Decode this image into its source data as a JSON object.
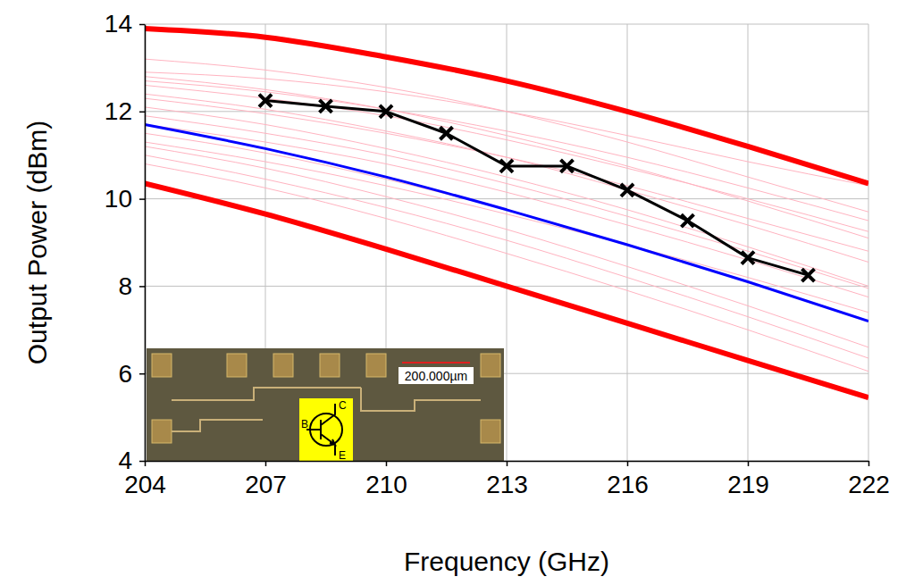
{
  "chart_data": {
    "type": "line",
    "x_label": "Frequency (GHz)",
    "y_label": "Output Power (dBm)",
    "xlim": [
      204,
      222
    ],
    "xticks": [
      204,
      207,
      210,
      213,
      216,
      219,
      222
    ],
    "ylim": [
      4,
      14
    ],
    "yticks": [
      4,
      6,
      8,
      10,
      12,
      14
    ],
    "grid": true,
    "annotations": [
      "200.000µm",
      "B",
      "C",
      "E"
    ],
    "series": [
      {
        "color": "#ffb3c0",
        "line_style": "solid",
        "marker": "none",
        "x": [
          204,
          207,
          210,
          213,
          216,
          219,
          222
        ],
        "values": [
          13.2,
          12.95,
          12.55,
          12.0,
          11.3,
          10.5,
          9.7
        ]
      },
      {
        "color": "#ffb3c0",
        "line_style": "solid",
        "marker": "none",
        "x": [
          204,
          207,
          210,
          213,
          216,
          219,
          222
        ],
        "values": [
          12.9,
          12.75,
          12.45,
          12.0,
          11.45,
          10.85,
          10.3
        ]
      },
      {
        "color": "#ffb3c0",
        "line_style": "solid",
        "marker": "none",
        "x": [
          204,
          207,
          210,
          213,
          216,
          219,
          222
        ],
        "values": [
          12.8,
          12.5,
          12.05,
          11.45,
          10.75,
          9.95,
          9.1
        ]
      },
      {
        "color": "#ffb3c0",
        "line_style": "solid",
        "marker": "none",
        "x": [
          204,
          207,
          210,
          213,
          216,
          219,
          222
        ],
        "values": [
          12.7,
          12.45,
          12.05,
          11.55,
          10.95,
          10.25,
          9.5
        ]
      },
      {
        "color": "#ffb3c0",
        "line_style": "solid",
        "marker": "none",
        "x": [
          204,
          207,
          210,
          213,
          216,
          219,
          222
        ],
        "values": [
          12.6,
          12.3,
          11.9,
          11.35,
          10.7,
          10.0,
          9.25
        ]
      },
      {
        "color": "#ffb3c0",
        "line_style": "solid",
        "marker": "none",
        "x": [
          204,
          207,
          210,
          213,
          216,
          219,
          222
        ],
        "values": [
          12.4,
          12.05,
          11.55,
          10.95,
          10.2,
          9.4,
          8.55
        ]
      },
      {
        "color": "#ffb3c0",
        "line_style": "solid",
        "marker": "none",
        "x": [
          204,
          207,
          210,
          213,
          216,
          219,
          222
        ],
        "values": [
          12.3,
          11.95,
          11.5,
          10.95,
          10.3,
          9.55,
          8.8
        ]
      },
      {
        "color": "#ffb3c0",
        "line_style": "solid",
        "marker": "none",
        "x": [
          204,
          207,
          210,
          213,
          216,
          219,
          222
        ],
        "values": [
          12.1,
          11.7,
          11.15,
          10.5,
          9.75,
          8.9,
          8.0
        ]
      },
      {
        "color": "#ffb3c0",
        "line_style": "solid",
        "marker": "none",
        "x": [
          204,
          207,
          210,
          213,
          216,
          219,
          222
        ],
        "values": [
          11.9,
          11.5,
          11.0,
          10.35,
          9.6,
          8.8,
          7.95
        ]
      },
      {
        "color": "#ffb3c0",
        "line_style": "solid",
        "marker": "none",
        "x": [
          204,
          207,
          210,
          213,
          216,
          219,
          222
        ],
        "values": [
          11.7,
          11.3,
          10.8,
          10.15,
          9.4,
          8.6,
          7.75
        ]
      },
      {
        "color": "#ffb3c0",
        "line_style": "solid",
        "marker": "none",
        "x": [
          204,
          207,
          210,
          213,
          216,
          219,
          222
        ],
        "values": [
          11.5,
          11.05,
          10.45,
          9.75,
          8.95,
          8.1,
          7.2
        ]
      },
      {
        "color": "#ffb3c0",
        "line_style": "solid",
        "marker": "none",
        "x": [
          204,
          207,
          210,
          213,
          216,
          219,
          222
        ],
        "values": [
          11.3,
          10.85,
          10.3,
          9.65,
          8.95,
          8.2,
          7.4
        ]
      },
      {
        "color": "#ffb3c0",
        "line_style": "solid",
        "marker": "none",
        "x": [
          204,
          207,
          210,
          213,
          216,
          219,
          222
        ],
        "values": [
          11.2,
          10.7,
          10.05,
          9.3,
          8.45,
          7.55,
          6.6
        ]
      },
      {
        "color": "#ffb3c0",
        "line_style": "solid",
        "marker": "none",
        "x": [
          204,
          207,
          210,
          213,
          216,
          219,
          222
        ],
        "values": [
          11.0,
          10.45,
          9.8,
          9.05,
          8.2,
          7.3,
          6.35
        ]
      },
      {
        "color": "#ffb3c0",
        "line_style": "solid",
        "marker": "none",
        "x": [
          204,
          207,
          210,
          213,
          216,
          219,
          222
        ],
        "values": [
          10.8,
          10.25,
          9.55,
          8.75,
          7.9,
          7.0,
          6.05
        ]
      },
      {
        "color": "#0000ff",
        "line_style": "solid",
        "marker": "none",
        "x": [
          204,
          207,
          210,
          213,
          216,
          219,
          222
        ],
        "values": [
          11.7,
          11.15,
          10.5,
          9.75,
          8.95,
          8.1,
          7.2
        ]
      },
      {
        "color": "#ff0000",
        "line_style": "thick",
        "marker": "none",
        "x": [
          204,
          207,
          210,
          213,
          216,
          219,
          222
        ],
        "values": [
          13.9,
          13.7,
          13.25,
          12.7,
          12.0,
          11.2,
          10.35
        ]
      },
      {
        "color": "#ff0000",
        "line_style": "thick",
        "marker": "none",
        "x": [
          204,
          207,
          210,
          213,
          216,
          219,
          222
        ],
        "values": [
          10.35,
          9.65,
          8.85,
          8.0,
          7.15,
          6.3,
          5.45
        ]
      },
      {
        "color": "#000000",
        "line_style": "solid",
        "marker": "x",
        "x": [
          207,
          208.5,
          210,
          211.5,
          213,
          214.5,
          216,
          217.5,
          219,
          220.5
        ],
        "values": [
          12.25,
          12.12,
          12.0,
          11.5,
          10.75,
          10.75,
          10.2,
          9.5,
          8.65,
          8.25
        ]
      }
    ]
  }
}
